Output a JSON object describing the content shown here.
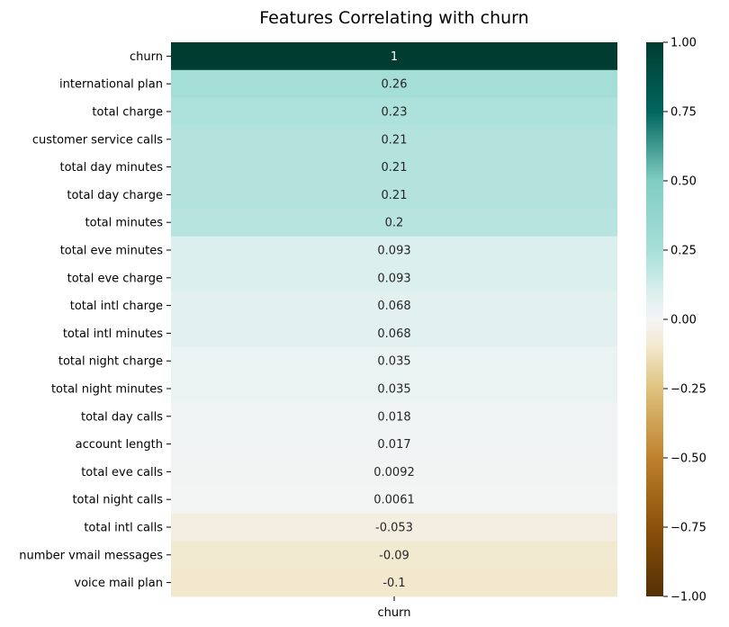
{
  "chart_data": {
    "type": "heatmap",
    "title": "Features Correlating with churn",
    "x_categories": [
      "churn"
    ],
    "y_categories": [
      "churn",
      "international plan",
      "total charge",
      "customer service calls",
      "total day minutes",
      "total day charge",
      "total minutes",
      "total eve minutes",
      "total eve charge",
      "total intl charge",
      "total intl minutes",
      "total night charge",
      "total night minutes",
      "total day calls",
      "account length",
      "total eve calls",
      "total night calls",
      "total intl calls",
      "number vmail messages",
      "voice mail plan"
    ],
    "values": [
      1,
      0.26,
      0.23,
      0.21,
      0.21,
      0.21,
      0.2,
      0.093,
      0.093,
      0.068,
      0.068,
      0.035,
      0.035,
      0.018,
      0.017,
      0.0092,
      0.0061,
      -0.053,
      -0.09,
      -0.1
    ],
    "annotations": [
      "1",
      "0.26",
      "0.23",
      "0.21",
      "0.21",
      "0.21",
      "0.2",
      "0.093",
      "0.093",
      "0.068",
      "0.068",
      "0.035",
      "0.035",
      "0.018",
      "0.017",
      "0.0092",
      "0.0061",
      "-0.053",
      "-0.09",
      "-0.1"
    ],
    "colormap": "BrBG",
    "vmin": -1,
    "vmax": 1,
    "colorbar_ticks": [
      1.0,
      0.75,
      0.5,
      0.25,
      0.0,
      -0.25,
      -0.5,
      -0.75,
      -1.0
    ],
    "colorbar_tick_labels": [
      "1.00",
      "0.75",
      "0.50",
      "0.25",
      "0.00",
      "−0.25",
      "−0.50",
      "−0.75",
      "−1.00"
    ]
  }
}
